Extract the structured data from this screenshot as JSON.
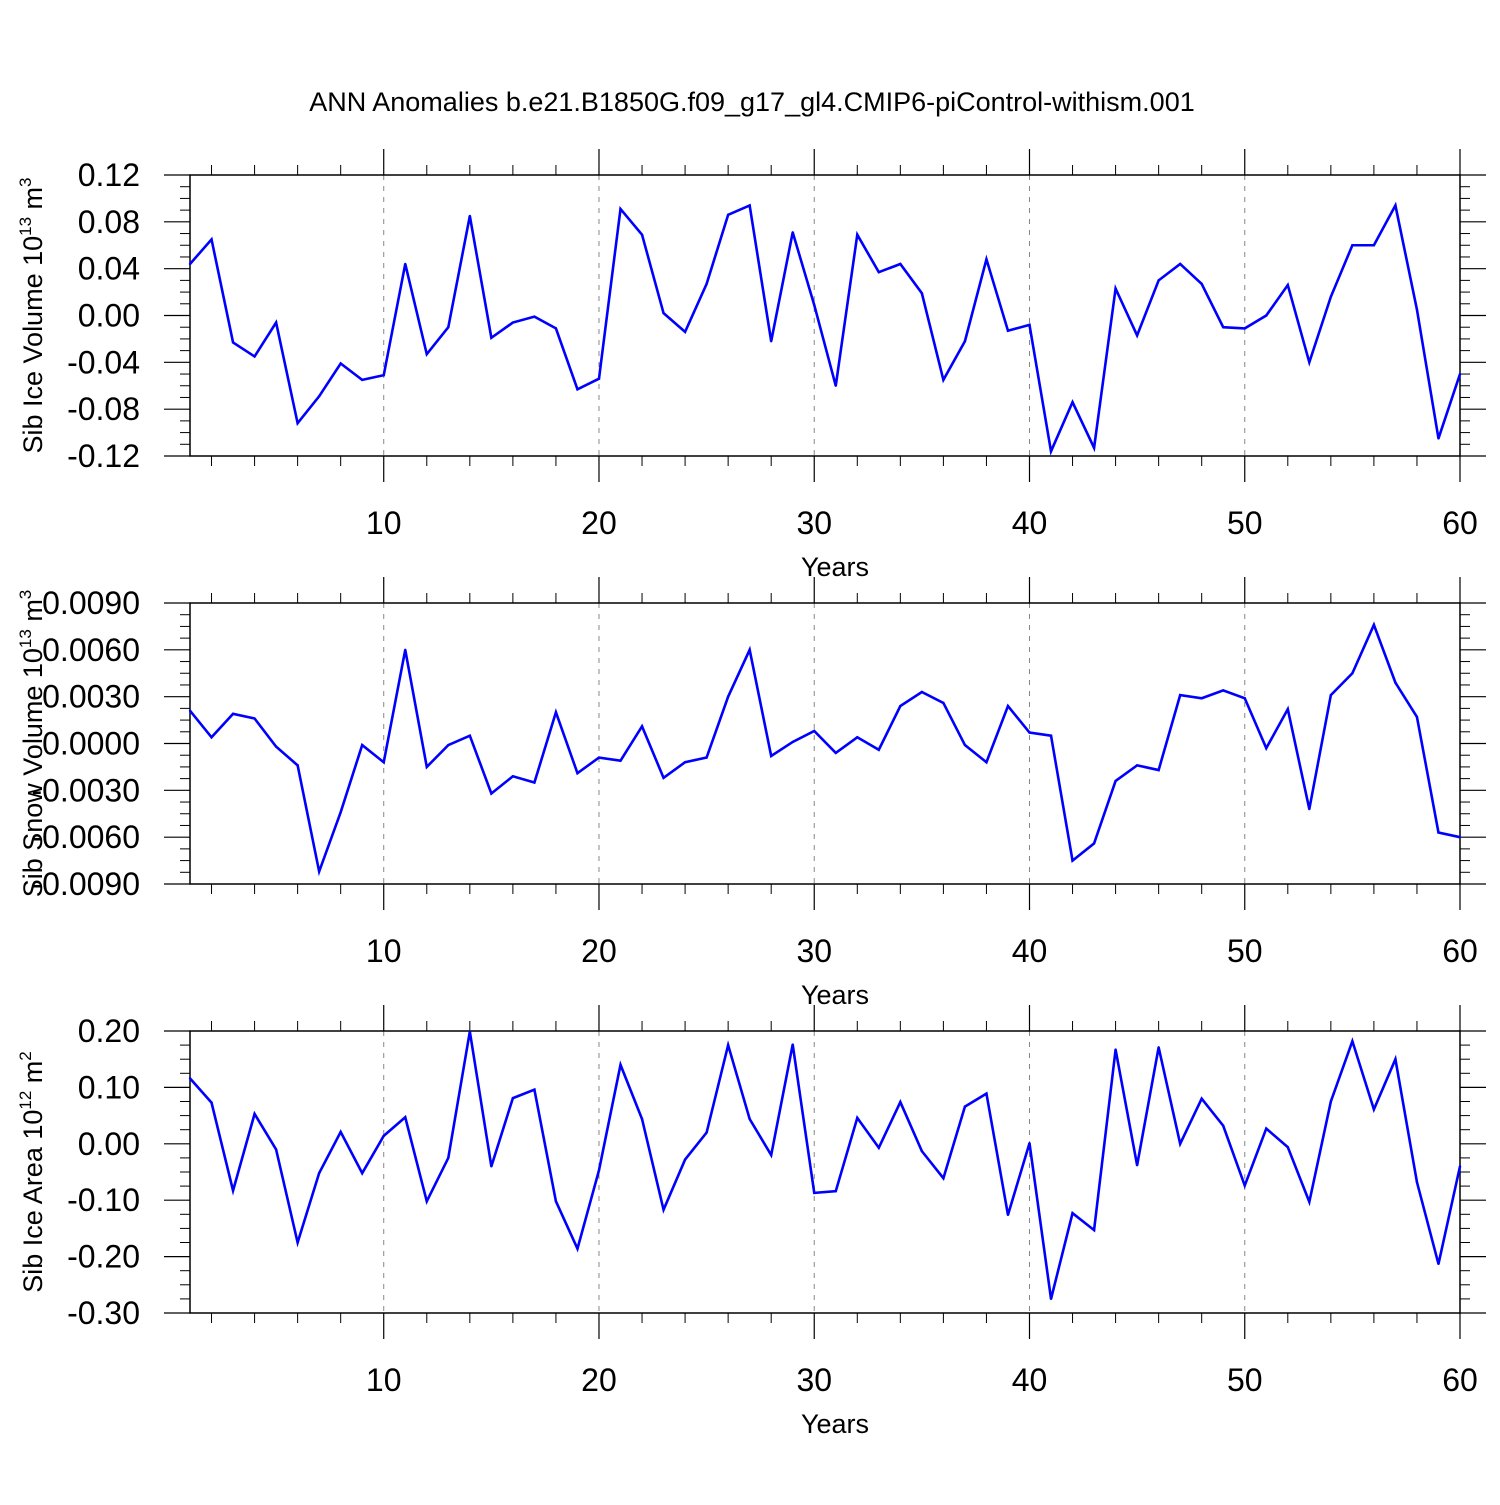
{
  "title": "ANN Anomalies b.e21.B1850G.f09_g17_gl4.CMIP6-piControl-withism.001",
  "colors": {
    "line": "#0000ff",
    "axis": "#000000",
    "grid": "#888888"
  },
  "chart_data": [
    {
      "type": "line",
      "xlabel": "Years",
      "ylabel_parts": [
        "Sib Ice Volume 10",
        "13",
        " m",
        "3"
      ],
      "xlim": [
        1,
        60
      ],
      "ylim": [
        -0.12,
        0.12
      ],
      "xticks": [
        10,
        20,
        30,
        40,
        50,
        60
      ],
      "yticks": [
        -0.12,
        -0.08,
        -0.04,
        0.0,
        0.04,
        0.08,
        0.12
      ],
      "ytick_labels": [
        "-0.12",
        "-0.08",
        "-0.04",
        "0.00",
        "0.04",
        "0.08",
        "0.12"
      ],
      "grid": "vertical dashed at major x ticks",
      "x": [
        1,
        2,
        3,
        4,
        5,
        6,
        7,
        8,
        9,
        10,
        11,
        12,
        13,
        14,
        15,
        16,
        17,
        18,
        19,
        20,
        21,
        22,
        23,
        24,
        25,
        26,
        27,
        28,
        29,
        30,
        31,
        32,
        33,
        34,
        35,
        36,
        37,
        38,
        39,
        40,
        41,
        42,
        43,
        44,
        45,
        46,
        47,
        48,
        49,
        50,
        51,
        52,
        53,
        54,
        55,
        56,
        57,
        58,
        59,
        60
      ],
      "values": [
        0.044,
        0.065,
        -0.023,
        -0.035,
        -0.006,
        -0.092,
        -0.069,
        -0.041,
        -0.055,
        -0.051,
        0.044,
        -0.033,
        -0.01,
        0.085,
        -0.019,
        -0.006,
        -0.001,
        -0.011,
        -0.063,
        -0.054,
        0.091,
        0.069,
        0.002,
        -0.014,
        0.027,
        0.086,
        0.094,
        -0.022,
        0.071,
        0.009,
        -0.06,
        0.069,
        0.037,
        0.044,
        0.019,
        -0.055,
        -0.022,
        0.048,
        -0.013,
        -0.008,
        -0.116,
        -0.074,
        -0.113,
        0.023,
        -0.017,
        0.03,
        0.044,
        0.027,
        -0.01,
        -0.011,
        0.0,
        0.026,
        -0.04,
        0.016,
        0.06,
        0.06,
        0.094,
        0.005,
        -0.105,
        -0.05
      ]
    },
    {
      "type": "line",
      "xlabel": "Years",
      "ylabel_parts": [
        "Sib Snow Volume 10",
        "13",
        " m",
        "3"
      ],
      "xlim": [
        1,
        60
      ],
      "ylim": [
        -0.009,
        0.009
      ],
      "xticks": [
        10,
        20,
        30,
        40,
        50,
        60
      ],
      "yticks": [
        -0.009,
        -0.006,
        -0.003,
        0.0,
        0.003,
        0.006,
        0.009
      ],
      "ytick_labels": [
        "-0.0090",
        "-0.0060",
        "-0.0030",
        "0.0000",
        "0.0030",
        "0.0060",
        "0.0090"
      ],
      "grid": "vertical dashed at major x ticks",
      "x": [
        1,
        2,
        3,
        4,
        5,
        6,
        7,
        8,
        9,
        10,
        11,
        12,
        13,
        14,
        15,
        16,
        17,
        18,
        19,
        20,
        21,
        22,
        23,
        24,
        25,
        26,
        27,
        28,
        29,
        30,
        31,
        32,
        33,
        34,
        35,
        36,
        37,
        38,
        39,
        40,
        41,
        42,
        43,
        44,
        45,
        46,
        47,
        48,
        49,
        50,
        51,
        52,
        53,
        54,
        55,
        56,
        57,
        58,
        59,
        60
      ],
      "values": [
        0.0021,
        0.0004,
        0.0019,
        0.0016,
        -0.0002,
        -0.0014,
        -0.0082,
        -0.0044,
        -0.0001,
        -0.0012,
        0.006,
        -0.0015,
        -0.0001,
        0.0005,
        -0.0032,
        -0.0021,
        -0.0025,
        0.002,
        -0.0019,
        -0.0009,
        -0.0011,
        0.0011,
        -0.0022,
        -0.0012,
        -0.0009,
        0.003,
        0.006,
        -0.0008,
        0.0001,
        0.0008,
        -0.0006,
        0.0004,
        -0.0004,
        0.0024,
        0.0033,
        0.0026,
        -0.0001,
        -0.0012,
        0.0024,
        0.0007,
        0.0005,
        -0.0075,
        -0.0064,
        -0.0024,
        -0.0014,
        -0.0017,
        0.0031,
        0.0029,
        0.0034,
        0.0029,
        -0.0003,
        0.0022,
        -0.0042,
        0.0031,
        0.0045,
        0.0076,
        0.0039,
        0.0017,
        -0.0057,
        -0.006
      ]
    },
    {
      "type": "line",
      "xlabel": "Years",
      "ylabel_parts": [
        "Sib Ice Area 10",
        "12",
        " m",
        "2"
      ],
      "xlim": [
        1,
        60
      ],
      "ylim": [
        -0.3,
        0.2
      ],
      "xticks": [
        10,
        20,
        30,
        40,
        50,
        60
      ],
      "yticks": [
        -0.3,
        -0.2,
        -0.1,
        0.0,
        0.1,
        0.2
      ],
      "ytick_labels": [
        "-0.30",
        "-0.20",
        "-0.10",
        "0.00",
        "0.10",
        "0.20"
      ],
      "grid": "vertical dashed at major x ticks",
      "x": [
        1,
        2,
        3,
        4,
        5,
        6,
        7,
        8,
        9,
        10,
        11,
        12,
        13,
        14,
        15,
        16,
        17,
        18,
        19,
        20,
        21,
        22,
        23,
        24,
        25,
        26,
        27,
        28,
        29,
        30,
        31,
        32,
        33,
        34,
        35,
        36,
        37,
        38,
        39,
        40,
        41,
        42,
        43,
        44,
        45,
        46,
        47,
        48,
        49,
        50,
        51,
        52,
        53,
        54,
        55,
        56,
        57,
        58,
        59,
        60
      ],
      "values": [
        0.116,
        0.073,
        -0.083,
        0.053,
        -0.01,
        -0.175,
        -0.052,
        0.021,
        -0.052,
        0.014,
        0.047,
        -0.102,
        -0.025,
        0.199,
        -0.04,
        0.081,
        0.096,
        -0.102,
        -0.186,
        -0.047,
        0.14,
        0.044,
        -0.117,
        -0.028,
        0.02,
        0.175,
        0.044,
        -0.02,
        0.176,
        -0.087,
        -0.084,
        0.046,
        -0.007,
        0.074,
        -0.013,
        -0.061,
        0.066,
        0.089,
        -0.126,
        0.001,
        -0.275,
        -0.123,
        -0.153,
        0.167,
        -0.038,
        0.171,
        0.0,
        0.08,
        0.032,
        -0.074,
        0.027,
        -0.006,
        -0.103,
        0.075,
        0.182,
        0.061,
        0.15,
        -0.068,
        -0.213,
        -0.04
      ]
    }
  ]
}
